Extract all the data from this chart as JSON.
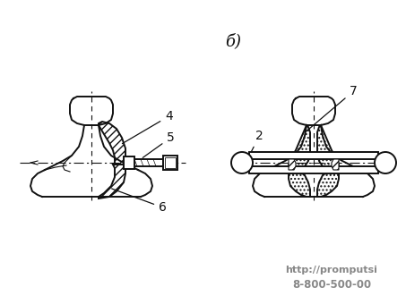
{
  "bg_color": "#ffffff",
  "line_color": "#111111",
  "label_4": "4",
  "label_5": "5",
  "label_6": "6",
  "label_7": "7",
  "label_2": "2",
  "label_b": "б)",
  "url_text": "http://promputsi",
  "phone_text": "8-800-500-00",
  "figsize": [
    4.53,
    3.4
  ],
  "dpi": 100
}
